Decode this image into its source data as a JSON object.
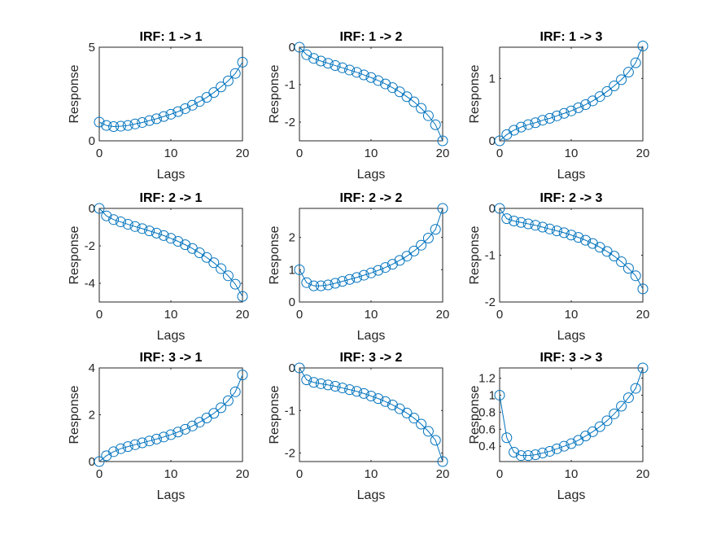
{
  "colors": {
    "series": "#0072BD",
    "axes": "#262626"
  },
  "chart_data": [
    {
      "type": "line",
      "title": "IRF: 1 -> 1",
      "xlabel": "Lags",
      "ylabel": "Response",
      "xlim": [
        0,
        20
      ],
      "ylim": [
        0,
        5
      ],
      "xticks": [
        0,
        10,
        20
      ],
      "yticks": [
        0,
        5
      ],
      "marker": "o",
      "grid": false,
      "x": [
        0,
        1,
        2,
        3,
        4,
        5,
        6,
        7,
        8,
        9,
        10,
        11,
        12,
        13,
        14,
        15,
        16,
        17,
        18,
        19,
        20
      ],
      "y": [
        1.0,
        0.82,
        0.76,
        0.78,
        0.82,
        0.9,
        0.98,
        1.08,
        1.18,
        1.3,
        1.42,
        1.56,
        1.72,
        1.9,
        2.1,
        2.32,
        2.58,
        2.88,
        3.2,
        3.6,
        4.2
      ]
    },
    {
      "type": "line",
      "title": "IRF: 1 -> 2",
      "xlabel": "Lags",
      "ylabel": "Response",
      "xlim": [
        0,
        20
      ],
      "ylim": [
        -2.5,
        0
      ],
      "xticks": [
        0,
        10,
        20
      ],
      "yticks": [
        -2,
        -1,
        0
      ],
      "marker": "o",
      "grid": false,
      "x": [
        0,
        1,
        2,
        3,
        4,
        5,
        6,
        7,
        8,
        9,
        10,
        11,
        12,
        13,
        14,
        15,
        16,
        17,
        18,
        19,
        20
      ],
      "y": [
        0,
        -0.2,
        -0.3,
        -0.37,
        -0.43,
        -0.49,
        -0.55,
        -0.61,
        -0.67,
        -0.74,
        -0.81,
        -0.89,
        -0.98,
        -1.08,
        -1.19,
        -1.32,
        -1.46,
        -1.63,
        -1.83,
        -2.07,
        -2.5
      ]
    },
    {
      "type": "line",
      "title": "IRF: 1 -> 3",
      "xlabel": "Lags",
      "ylabel": "Response",
      "xlim": [
        0,
        20
      ],
      "ylim": [
        0,
        1.5
      ],
      "xticks": [
        0,
        10,
        20
      ],
      "yticks": [
        0,
        1
      ],
      "marker": "o",
      "grid": false,
      "x": [
        0,
        1,
        2,
        3,
        4,
        5,
        6,
        7,
        8,
        9,
        10,
        11,
        12,
        13,
        14,
        15,
        16,
        17,
        18,
        19,
        20
      ],
      "y": [
        0,
        0.1,
        0.17,
        0.22,
        0.26,
        0.29,
        0.33,
        0.36,
        0.4,
        0.44,
        0.48,
        0.53,
        0.58,
        0.64,
        0.71,
        0.79,
        0.88,
        0.98,
        1.1,
        1.25,
        1.52
      ]
    },
    {
      "type": "line",
      "title": "IRF: 2 -> 1",
      "xlabel": "Lags",
      "ylabel": "Response",
      "xlim": [
        0,
        20
      ],
      "ylim": [
        -5,
        0
      ],
      "xticks": [
        0,
        10,
        20
      ],
      "yticks": [
        -4,
        -2,
        0
      ],
      "marker": "o",
      "grid": false,
      "x": [
        0,
        1,
        2,
        3,
        4,
        5,
        6,
        7,
        8,
        9,
        10,
        11,
        12,
        13,
        14,
        15,
        16,
        17,
        18,
        19,
        20
      ],
      "y": [
        0,
        -0.4,
        -0.6,
        -0.72,
        -0.85,
        -0.97,
        -1.08,
        -1.2,
        -1.32,
        -1.45,
        -1.6,
        -1.76,
        -1.94,
        -2.14,
        -2.37,
        -2.62,
        -2.9,
        -3.22,
        -3.6,
        -4.05,
        -4.7
      ]
    },
    {
      "type": "line",
      "title": "IRF: 2 -> 2",
      "xlabel": "Lags",
      "ylabel": "Response",
      "xlim": [
        0,
        20
      ],
      "ylim": [
        0,
        2.9
      ],
      "xticks": [
        0,
        10,
        20
      ],
      "yticks": [
        0,
        1,
        2
      ],
      "marker": "o",
      "grid": false,
      "x": [
        0,
        1,
        2,
        3,
        4,
        5,
        6,
        7,
        8,
        9,
        10,
        11,
        12,
        13,
        14,
        15,
        16,
        17,
        18,
        19,
        20
      ],
      "y": [
        1.0,
        0.6,
        0.5,
        0.5,
        0.53,
        0.58,
        0.64,
        0.7,
        0.76,
        0.83,
        0.9,
        0.98,
        1.07,
        1.17,
        1.29,
        1.42,
        1.58,
        1.76,
        1.98,
        2.25,
        2.9
      ]
    },
    {
      "type": "line",
      "title": "IRF: 2 -> 3",
      "xlabel": "Lags",
      "ylabel": "Response",
      "xlim": [
        0,
        20
      ],
      "ylim": [
        -2,
        0
      ],
      "xticks": [
        0,
        10,
        20
      ],
      "yticks": [
        -2,
        -1,
        0
      ],
      "marker": "o",
      "grid": false,
      "x": [
        0,
        1,
        2,
        3,
        4,
        5,
        6,
        7,
        8,
        9,
        10,
        11,
        12,
        13,
        14,
        15,
        16,
        17,
        18,
        19,
        20
      ],
      "y": [
        0,
        -0.22,
        -0.27,
        -0.3,
        -0.33,
        -0.36,
        -0.4,
        -0.44,
        -0.48,
        -0.52,
        -0.57,
        -0.62,
        -0.68,
        -0.75,
        -0.83,
        -0.92,
        -1.02,
        -1.14,
        -1.28,
        -1.44,
        -1.72
      ]
    },
    {
      "type": "line",
      "title": "IRF: 3 -> 1",
      "xlabel": "Lags",
      "ylabel": "Response",
      "xlim": [
        0,
        20
      ],
      "ylim": [
        0,
        4
      ],
      "xticks": [
        0,
        10,
        20
      ],
      "yticks": [
        0,
        2,
        4
      ],
      "marker": "o",
      "grid": false,
      "x": [
        0,
        1,
        2,
        3,
        4,
        5,
        6,
        7,
        8,
        9,
        10,
        11,
        12,
        13,
        14,
        15,
        16,
        17,
        18,
        19,
        20
      ],
      "y": [
        0,
        0.25,
        0.42,
        0.55,
        0.64,
        0.72,
        0.8,
        0.88,
        0.96,
        1.05,
        1.15,
        1.26,
        1.38,
        1.52,
        1.68,
        1.86,
        2.06,
        2.3,
        2.6,
        2.98,
        3.7
      ]
    },
    {
      "type": "line",
      "title": "IRF: 3 -> 2",
      "xlabel": "Lags",
      "ylabel": "Response",
      "xlim": [
        0,
        20
      ],
      "ylim": [
        -2.2,
        0
      ],
      "xticks": [
        0,
        10,
        20
      ],
      "yticks": [
        -2,
        -1,
        0
      ],
      "marker": "o",
      "grid": false,
      "x": [
        0,
        1,
        2,
        3,
        4,
        5,
        6,
        7,
        8,
        9,
        10,
        11,
        12,
        13,
        14,
        15,
        16,
        17,
        18,
        19,
        20
      ],
      "y": [
        0,
        -0.28,
        -0.34,
        -0.37,
        -0.4,
        -0.43,
        -0.47,
        -0.51,
        -0.55,
        -0.6,
        -0.66,
        -0.72,
        -0.79,
        -0.87,
        -0.96,
        -1.06,
        -1.18,
        -1.32,
        -1.49,
        -1.7,
        -2.2
      ]
    },
    {
      "type": "line",
      "title": "IRF: 3 -> 3",
      "xlabel": "Lags",
      "ylabel": "Response",
      "xlim": [
        0,
        20
      ],
      "ylim": [
        0.22,
        1.32
      ],
      "xticks": [
        0,
        10,
        20
      ],
      "yticks": [
        0.4,
        0.6,
        0.8,
        1,
        1.2
      ],
      "marker": "o",
      "grid": false,
      "x": [
        0,
        1,
        2,
        3,
        4,
        5,
        6,
        7,
        8,
        9,
        10,
        11,
        12,
        13,
        14,
        15,
        16,
        17,
        18,
        19,
        20
      ],
      "y": [
        1.0,
        0.5,
        0.33,
        0.29,
        0.29,
        0.3,
        0.32,
        0.34,
        0.37,
        0.4,
        0.43,
        0.47,
        0.52,
        0.57,
        0.63,
        0.7,
        0.78,
        0.87,
        0.97,
        1.08,
        1.32
      ]
    }
  ]
}
